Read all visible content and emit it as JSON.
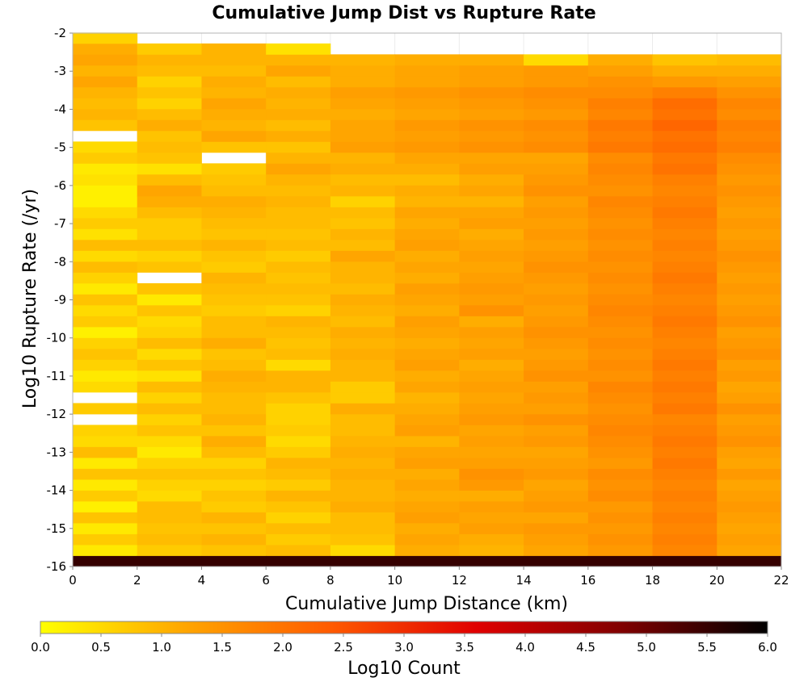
{
  "chart_data": {
    "type": "heatmap",
    "title": "Cumulative Jump Dist vs Rupture Rate",
    "xlabel": "Cumulative Jump Distance (km)",
    "ylabel": "Log10 Rupture Rate (/yr)",
    "xlim": [
      0,
      22
    ],
    "ylim": [
      -16,
      -2
    ],
    "x_ticks": [
      "0",
      "2",
      "4",
      "6",
      "8",
      "10",
      "12",
      "14",
      "16",
      "18",
      "20",
      "22"
    ],
    "y_ticks": [
      "-2",
      "-3",
      "-4",
      "-5",
      "-6",
      "-7",
      "-8",
      "-9",
      "-10",
      "-11",
      "-12",
      "-13",
      "-14",
      "-15",
      "-16"
    ],
    "x_bin_width": 2,
    "y_bin_start": -16,
    "y_bin_height": 0.286,
    "colorbar": {
      "label": "Log10 Count",
      "range": [
        0,
        6
      ],
      "ticks": [
        "0.0",
        "0.5",
        "1.0",
        "1.5",
        "2.0",
        "2.5",
        "3.0",
        "3.5",
        "4.0",
        "4.5",
        "5.0",
        "5.5",
        "6.0"
      ],
      "colors": [
        "#ffff00",
        "#ffa500",
        "#ff5a00",
        "#e00000",
        "#800000",
        "#000000"
      ]
    },
    "grid": true,
    "columns": [
      {
        "x_start": 0,
        "values": [
          5.5,
          0.3,
          0.7,
          0.3,
          0.8,
          0.2,
          0.7,
          0.3,
          0.8,
          0.3,
          0.9,
          0.5,
          0.6,
          null,
          0.7,
          null,
          0.5,
          0.3,
          0.6,
          0.8,
          0.6,
          0.2,
          0.7,
          0.5,
          0.8,
          0.3,
          0.6,
          0.9,
          0.5,
          0.9,
          0.4,
          0.7,
          0.5,
          0.2,
          0.2,
          0.4,
          0.3,
          0.7,
          0.5,
          null,
          0.8,
          1.0,
          0.9,
          1.0,
          1.2,
          1.0,
          1.2,
          1.1,
          0.6
        ]
      },
      {
        "x_start": 2,
        "values": [
          5.5,
          0.7,
          0.9,
          0.8,
          0.9,
          0.9,
          0.5,
          0.6,
          0.8,
          0.6,
          0.3,
          0.5,
          0.8,
          0.6,
          0.9,
          0.6,
          0.9,
          0.4,
          0.8,
          0.5,
          0.9,
          0.6,
          0.5,
          0.8,
          0.3,
          0.8,
          null,
          0.8,
          0.6,
          0.9,
          0.7,
          0.7,
          0.9,
          1.1,
          1.2,
          0.9,
          0.4,
          0.8,
          0.9,
          0.8,
          1.1,
          0.9,
          0.6,
          0.8,
          0.6,
          0.9,
          1.0,
          0.7
        ]
      },
      {
        "x_start": 4,
        "values": [
          5.5,
          0.8,
          1.0,
          0.8,
          1.0,
          0.7,
          0.8,
          0.6,
          0.8,
          0.6,
          0.9,
          1.1,
          0.8,
          1.0,
          0.9,
          0.9,
          1.0,
          1.1,
          0.9,
          0.8,
          1.1,
          0.9,
          0.9,
          0.7,
          0.8,
          0.9,
          1.0,
          0.7,
          0.8,
          1.0,
          0.8,
          0.9,
          1.0,
          1.1,
          0.9,
          0.8,
          0.7,
          null,
          0.8,
          1.2,
          1.0,
          1.1,
          1.2,
          1.0,
          1.1,
          0.9,
          1.0,
          1.0
        ]
      },
      {
        "x_start": 6,
        "values": [
          5.5,
          0.9,
          0.7,
          0.9,
          0.6,
          0.8,
          1.0,
          0.7,
          0.9,
          1.0,
          0.7,
          0.5,
          0.7,
          0.6,
          0.6,
          0.8,
          1.0,
          1.0,
          0.5,
          0.9,
          0.8,
          0.9,
          1.0,
          0.6,
          0.8,
          0.9,
          0.8,
          0.9,
          0.7,
          0.9,
          0.8,
          0.9,
          0.9,
          1.0,
          0.9,
          1.0,
          1.2,
          1.0,
          0.8,
          1.1,
          0.9,
          1.1,
          1.0,
          1.1,
          0.9,
          1.2,
          1.0,
          0.4
        ]
      },
      {
        "x_start": 8,
        "values": [
          5.5,
          0.5,
          0.8,
          0.9,
          0.9,
          1.1,
          1.0,
          1.0,
          1.1,
          1.0,
          1.1,
          1.0,
          0.9,
          0.9,
          1.1,
          0.7,
          0.7,
          1.0,
          1.0,
          1.1,
          1.0,
          1.1,
          0.9,
          1.0,
          1.1,
          0.9,
          1.0,
          1.0,
          1.2,
          0.9,
          1.0,
          0.8,
          0.9,
          0.6,
          1.0,
          0.9,
          1.1,
          1.0,
          1.3,
          1.2,
          1.2,
          1.1,
          1.2,
          1.3,
          1.1,
          1.1,
          1.0
        ]
      },
      {
        "x_start": 10,
        "values": [
          5.5,
          1.1,
          1.2,
          1.1,
          1.3,
          1.2,
          1.1,
          1.2,
          1.1,
          1.3,
          1.2,
          1.0,
          1.3,
          1.2,
          1.1,
          1.0,
          1.2,
          1.1,
          1.3,
          1.2,
          1.1,
          1.2,
          1.3,
          1.1,
          1.2,
          1.3,
          1.1,
          1.2,
          1.1,
          1.3,
          1.2,
          1.1,
          1.2,
          1.0,
          1.1,
          0.9,
          1.1,
          1.2,
          1.4,
          1.3,
          1.4,
          1.2,
          1.3,
          1.4,
          1.2,
          1.2,
          1.1
        ]
      },
      {
        "x_start": 12,
        "values": [
          5.5,
          1.0,
          1.1,
          1.3,
          1.2,
          1.3,
          1.1,
          1.4,
          1.5,
          1.3,
          1.2,
          1.3,
          1.2,
          1.4,
          1.3,
          1.2,
          1.3,
          1.2,
          1.1,
          1.3,
          1.2,
          1.3,
          1.1,
          1.5,
          1.3,
          1.4,
          1.3,
          1.2,
          1.3,
          1.2,
          1.1,
          1.3,
          1.2,
          1.0,
          1.2,
          1.1,
          1.3,
          1.2,
          1.5,
          1.4,
          1.5,
          1.3,
          1.4,
          1.5,
          1.3,
          1.3,
          1.1
        ]
      },
      {
        "x_start": 14,
        "values": [
          5.5,
          1.2,
          1.3,
          1.4,
          1.2,
          1.4,
          1.3,
          1.2,
          1.4,
          1.3,
          1.2,
          1.4,
          1.3,
          1.5,
          1.3,
          1.4,
          1.3,
          1.5,
          1.4,
          1.3,
          1.4,
          1.5,
          1.4,
          1.3,
          1.4,
          1.3,
          1.4,
          1.5,
          1.4,
          1.3,
          1.4,
          1.3,
          1.4,
          1.3,
          1.5,
          1.4,
          1.3,
          1.2,
          1.6,
          1.5,
          1.6,
          1.4,
          1.5,
          1.6,
          1.4,
          1.4,
          0.5
        ]
      },
      {
        "x_start": 16,
        "values": [
          5.5,
          1.4,
          1.5,
          1.4,
          1.5,
          1.4,
          1.6,
          1.5,
          1.6,
          1.4,
          1.5,
          1.6,
          1.7,
          1.6,
          1.5,
          1.6,
          1.7,
          1.5,
          1.6,
          1.5,
          1.6,
          1.5,
          1.6,
          1.7,
          1.6,
          1.5,
          1.6,
          1.5,
          1.6,
          1.5,
          1.6,
          1.5,
          1.6,
          1.7,
          1.5,
          1.6,
          1.7,
          1.6,
          1.9,
          1.8,
          1.9,
          1.7,
          1.8,
          1.6,
          1.5,
          1.3,
          1.1
        ]
      },
      {
        "x_start": 18,
        "values": [
          5.5,
          1.7,
          1.8,
          1.7,
          1.8,
          1.7,
          1.8,
          1.7,
          1.8,
          1.9,
          1.8,
          1.9,
          1.8,
          1.7,
          1.9,
          1.8,
          1.9,
          1.8,
          1.9,
          1.8,
          1.7,
          1.8,
          1.9,
          1.8,
          1.7,
          1.8,
          1.9,
          1.8,
          1.7,
          1.8,
          1.7,
          1.8,
          1.9,
          1.8,
          1.7,
          1.8,
          2.0,
          1.9,
          2.1,
          2.0,
          2.2,
          2.0,
          2.1,
          1.8,
          1.4,
          1.1,
          0.8
        ]
      },
      {
        "x_start": 20,
        "values": [
          5.5,
          1.2,
          1.3,
          1.2,
          1.3,
          1.4,
          1.3,
          1.2,
          1.4,
          1.2,
          1.3,
          1.5,
          1.4,
          1.3,
          1.5,
          1.3,
          1.2,
          1.4,
          1.3,
          1.5,
          1.4,
          1.3,
          1.5,
          1.4,
          1.3,
          1.4,
          1.3,
          1.4,
          1.5,
          1.4,
          1.3,
          1.4,
          1.3,
          1.4,
          1.5,
          1.4,
          1.5,
          1.6,
          1.8,
          1.7,
          1.8,
          1.6,
          1.7,
          1.5,
          1.3,
          1.1,
          0.9
        ]
      }
    ]
  }
}
